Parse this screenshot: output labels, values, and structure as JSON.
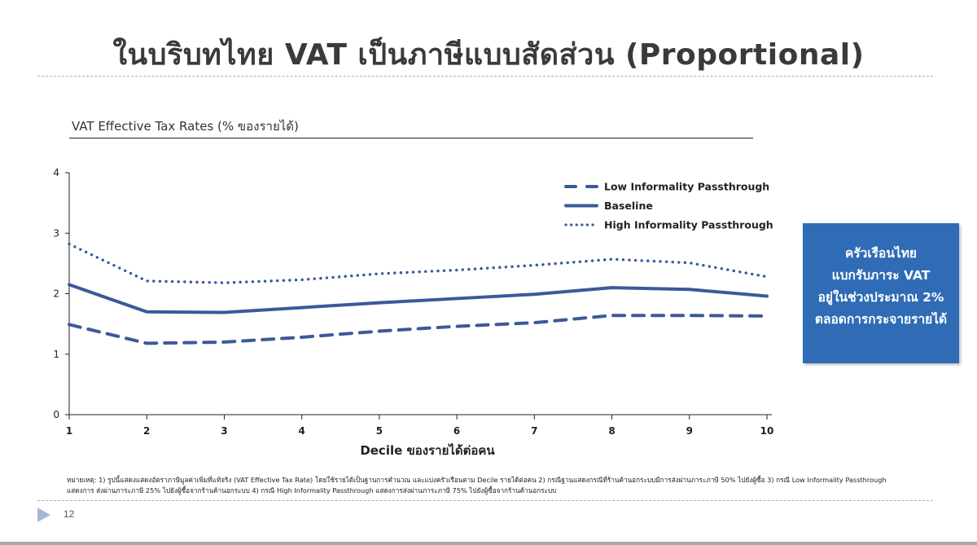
{
  "slide": {
    "title": "ในบริบทไทย VAT เป็นภาษีแบบสัดส่วน (Proportional)",
    "page_number": "12"
  },
  "chart": {
    "title": "VAT Effective Tax Rates (% ของรายได้)",
    "x_axis_title": "Decile ของรายได้ต่อคน",
    "y_ticks": [
      "0",
      "1",
      "2",
      "3",
      "4"
    ],
    "x_ticks": [
      "1",
      "2",
      "3",
      "4",
      "5",
      "6",
      "7",
      "8",
      "9",
      "10"
    ],
    "legend": [
      {
        "label": "Low Informality Passthrough",
        "style": "dashed"
      },
      {
        "label": "Baseline",
        "style": "solid"
      },
      {
        "label": "High Informality Passthrough",
        "style": "dotted"
      }
    ],
    "line_color": "#3b5a9a"
  },
  "callout": {
    "lines": [
      "ครัวเรือนไทย",
      "แบกรับภาระ VAT",
      "อยู่ในช่วงประมาณ 2%",
      "ตลอดการกระจายรายได้"
    ],
    "background": "#2f6cb5"
  },
  "footnote": {
    "line1": "หมายเหตุ: 1) รูปนี้แสดงแสดงอัตราภาษีมูลค่าเพิ่มที่แท้จริง (VAT Effective Tax Rate) โดยใช้รายได้เป็นฐานการคำนวณ และแบ่งครัวเรือนตาม Decile รายได้ต่อคน 2) กรณีฐานแสดงกรณีที่ร้านค้านอกระบบมีการส่งผ่านภาระภาษี 50% ไปยังผู้ซื้อ 3) กรณี Low Informality Passthrough",
    "line2": "แสดงการ ส่งผ่านภาระภาษี 25% ไปยังผู้ซื้อจากร้านค้านอกระบบ 4) กรณี High Informality Passthrough แสดงการส่งผ่านภาระภาษี 75% ไปยังผู้ซื้อจากร้านค้านอกระบบ"
  },
  "chart_data": {
    "type": "line",
    "title": "VAT Effective Tax Rates (% ของรายได้)",
    "xlabel": "Decile ของรายได้ต่อคน",
    "ylabel": "% ของรายได้",
    "x": [
      1,
      2,
      3,
      4,
      5,
      6,
      7,
      8,
      9,
      10
    ],
    "ylim": [
      0,
      4
    ],
    "xlim": [
      1,
      10
    ],
    "grid": false,
    "legend_position": "top-right (inside plot)",
    "series": [
      {
        "name": "Low Informality Passthrough",
        "style": "dashed",
        "values": [
          1.49,
          1.18,
          1.2,
          1.28,
          1.38,
          1.46,
          1.52,
          1.64,
          1.64,
          1.63
        ]
      },
      {
        "name": "Baseline",
        "style": "solid",
        "values": [
          2.15,
          1.7,
          1.69,
          1.77,
          1.85,
          1.92,
          1.99,
          2.1,
          2.07,
          1.96
        ]
      },
      {
        "name": "High Informality Passthrough",
        "style": "dotted",
        "values": [
          2.82,
          2.21,
          2.18,
          2.23,
          2.33,
          2.39,
          2.47,
          2.57,
          2.51,
          2.28
        ]
      }
    ]
  }
}
